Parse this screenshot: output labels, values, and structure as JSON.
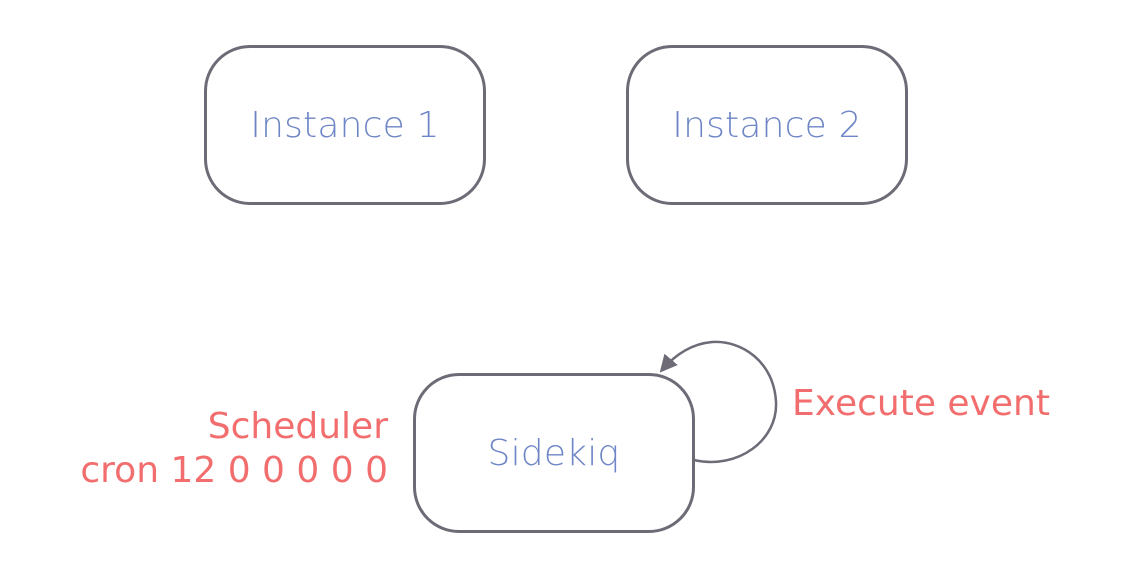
{
  "nodes": {
    "instance_1": {
      "label": "Instance 1"
    },
    "instance_2": {
      "label": "Instance 2"
    },
    "sidekiq": {
      "label": "Sidekiq"
    }
  },
  "annotations": {
    "scheduler_title": "Scheduler",
    "scheduler_cron": "cron 12 0 0 0 0 0",
    "execute_event": "Execute event"
  },
  "colors": {
    "node_border": "#6e6b77",
    "node_text": "#6f86c6",
    "annotation_text": "#f26e6e",
    "arrow": "#6e6b77"
  }
}
